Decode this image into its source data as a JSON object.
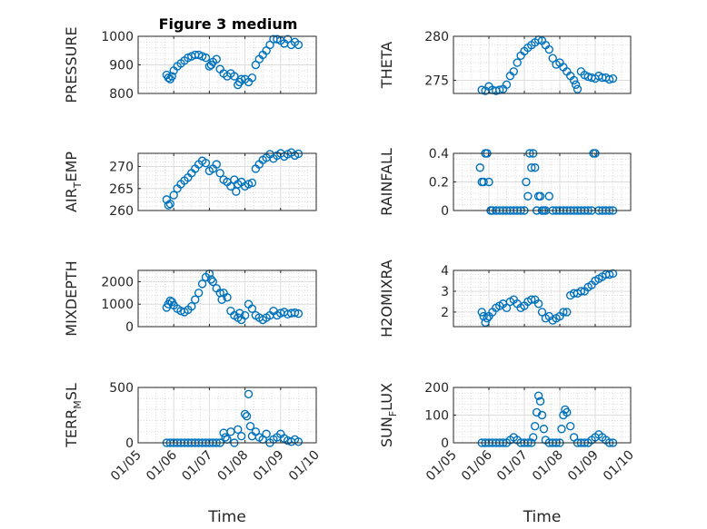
{
  "figure": {
    "title": "Figure 3 medium",
    "xlabel": "Time",
    "x_ticks": [
      "01/05",
      "01/06",
      "01/07",
      "01/08",
      "01/09",
      "01/10"
    ],
    "marker_color": "#0072bd"
  },
  "chart_data": [
    {
      "type": "scatter",
      "ylabel": "PRESSURE",
      "ylim": [
        800,
        1000
      ],
      "yticks": [
        "800",
        "900",
        "1000"
      ],
      "ytick_values": [
        800,
        900,
        1000
      ],
      "xlim": [
        5,
        10
      ],
      "grid": true,
      "x": [
        5.8,
        5.85,
        5.9,
        5.95,
        6.0,
        6.1,
        6.2,
        6.3,
        6.4,
        6.5,
        6.6,
        6.7,
        6.8,
        6.9,
        7.0,
        7.05,
        7.1,
        7.2,
        7.3,
        7.4,
        7.5,
        7.6,
        7.7,
        7.8,
        7.85,
        7.9,
        8.0,
        8.1,
        8.2,
        8.3,
        8.4,
        8.5,
        8.6,
        8.7,
        8.8,
        8.9,
        9.0,
        9.1,
        9.2,
        9.3,
        9.4,
        9.5
      ],
      "y": [
        865,
        855,
        850,
        860,
        880,
        895,
        905,
        915,
        925,
        930,
        935,
        935,
        930,
        925,
        895,
        900,
        910,
        920,
        885,
        870,
        860,
        870,
        860,
        830,
        840,
        850,
        850,
        840,
        855,
        900,
        920,
        935,
        950,
        970,
        990,
        990,
        985,
        975,
        990,
        970,
        980,
        970
      ]
    },
    {
      "type": "scatter",
      "ylabel": "THETA",
      "ylim": [
        273.5,
        280
      ],
      "yticks": [
        "275",
        "280"
      ],
      "ytick_values": [
        275,
        280
      ],
      "xlim": [
        5,
        10
      ],
      "grid": true,
      "x": [
        5.8,
        5.9,
        6.0,
        6.1,
        6.2,
        6.3,
        6.4,
        6.5,
        6.6,
        6.7,
        6.8,
        6.9,
        7.0,
        7.1,
        7.2,
        7.3,
        7.4,
        7.5,
        7.6,
        7.7,
        7.8,
        7.9,
        8.0,
        8.1,
        8.2,
        8.3,
        8.4,
        8.45,
        8.5,
        8.6,
        8.7,
        8.8,
        8.9,
        9.0,
        9.1,
        9.2,
        9.3,
        9.4,
        9.5
      ],
      "y": [
        273.9,
        273.8,
        274.3,
        273.9,
        273.8,
        273.9,
        274.0,
        274.5,
        275.5,
        276.0,
        277.0,
        277.8,
        278.3,
        278.7,
        279.0,
        279.3,
        279.6,
        279.5,
        279.0,
        278.5,
        277.5,
        276.8,
        277.0,
        276.5,
        276.0,
        275.5,
        275.0,
        274.5,
        274.0,
        276.0,
        275.6,
        275.4,
        275.3,
        275.2,
        275.5,
        275.3,
        275.3,
        275.1,
        275.2
      ]
    },
    {
      "type": "scatter",
      "ylabel": "AIR_T_EMP",
      "ylabel_parts": [
        "AIR",
        "T",
        "EMP"
      ],
      "ylim": [
        260,
        273
      ],
      "yticks": [
        "260",
        "265",
        "270"
      ],
      "ytick_values": [
        260,
        265,
        270
      ],
      "xlim": [
        5,
        10
      ],
      "grid": true,
      "x": [
        5.8,
        5.85,
        5.9,
        6.0,
        6.1,
        6.2,
        6.3,
        6.4,
        6.5,
        6.6,
        6.7,
        6.8,
        6.9,
        7.0,
        7.1,
        7.2,
        7.3,
        7.4,
        7.5,
        7.6,
        7.7,
        7.75,
        7.8,
        7.9,
        8.0,
        8.1,
        8.2,
        8.3,
        8.4,
        8.5,
        8.6,
        8.7,
        8.8,
        8.9,
        9.0,
        9.1,
        9.2,
        9.3,
        9.4,
        9.5
      ],
      "y": [
        262.5,
        261.2,
        261.5,
        263.5,
        265,
        266,
        266.8,
        267.5,
        268.5,
        269.5,
        270.5,
        271.3,
        270.8,
        269,
        269.5,
        270.5,
        268.5,
        267,
        266.5,
        265.5,
        267.0,
        264.3,
        266.0,
        266.5,
        265.5,
        266.0,
        266.3,
        269.5,
        270.5,
        271.5,
        272.0,
        272.8,
        271.8,
        272.5,
        273.0,
        272.3,
        272.8,
        273.2,
        272.5,
        272.9
      ]
    },
    {
      "type": "scatter",
      "ylabel": "RAINFALL",
      "ylim": [
        0,
        0.4
      ],
      "yticks": [
        "0",
        "0.2",
        "0.4"
      ],
      "ytick_values": [
        0,
        0.2,
        0.4
      ],
      "xlim": [
        5,
        10
      ],
      "grid": true,
      "x": [
        5.75,
        5.8,
        5.85,
        5.9,
        5.95,
        6.0,
        6.05,
        6.1,
        6.2,
        6.3,
        6.4,
        6.5,
        6.6,
        6.7,
        6.8,
        6.9,
        7.0,
        7.05,
        7.1,
        7.15,
        7.2,
        7.25,
        7.3,
        7.35,
        7.4,
        7.45,
        7.5,
        7.55,
        7.6,
        7.7,
        7.8,
        7.9,
        8.0,
        8.1,
        8.2,
        8.3,
        8.4,
        8.5,
        8.6,
        8.7,
        8.8,
        8.9,
        8.95,
        9.0,
        9.1,
        9.2,
        9.3,
        9.4,
        9.5
      ],
      "y": [
        0.3,
        0.2,
        0.2,
        0.4,
        0.4,
        0.2,
        0,
        0,
        0,
        0,
        0,
        0,
        0,
        0,
        0,
        0,
        0,
        0.2,
        0.1,
        0.4,
        0.3,
        0.4,
        0.3,
        0,
        0.1,
        0.1,
        0,
        0,
        0,
        0.1,
        0,
        0,
        0,
        0,
        0,
        0,
        0,
        0,
        0,
        0,
        0,
        0,
        0.4,
        0.4,
        0,
        0,
        0,
        0,
        0
      ]
    },
    {
      "type": "scatter",
      "ylabel": "MIXDEPTH",
      "ylim": [
        0,
        2500
      ],
      "yticks": [
        "0",
        "1000",
        "2000"
      ],
      "ytick_values": [
        0,
        1000,
        2000
      ],
      "xlim": [
        5,
        10
      ],
      "grid": true,
      "x": [
        5.8,
        5.85,
        5.9,
        5.95,
        6.0,
        6.1,
        6.2,
        6.3,
        6.4,
        6.5,
        6.6,
        6.7,
        6.8,
        6.9,
        7.0,
        7.05,
        7.1,
        7.2,
        7.3,
        7.35,
        7.4,
        7.5,
        7.6,
        7.7,
        7.8,
        7.85,
        7.9,
        8.0,
        8.1,
        8.2,
        8.3,
        8.4,
        8.5,
        8.6,
        8.7,
        8.8,
        8.9,
        9.0,
        9.1,
        9.2,
        9.3,
        9.4,
        9.5
      ],
      "y": [
        850,
        1000,
        1150,
        1100,
        950,
        800,
        700,
        650,
        750,
        900,
        1200,
        1500,
        1900,
        2200,
        2350,
        2100,
        2000,
        1700,
        1500,
        1200,
        1500,
        1300,
        700,
        500,
        400,
        600,
        300,
        500,
        1000,
        800,
        500,
        400,
        300,
        400,
        500,
        700,
        500,
        600,
        650,
        550,
        600,
        620,
        580
      ]
    },
    {
      "type": "scatter",
      "ylabel": "H2OMIXRA",
      "ylim": [
        1.3,
        4
      ],
      "yticks": [
        "2",
        "3",
        "4"
      ],
      "ytick_values": [
        2,
        3,
        4
      ],
      "xlim": [
        5,
        10
      ],
      "grid": true,
      "x": [
        5.8,
        5.85,
        5.9,
        5.95,
        6.0,
        6.1,
        6.2,
        6.3,
        6.4,
        6.5,
        6.6,
        6.7,
        6.8,
        6.9,
        7.0,
        7.1,
        7.2,
        7.3,
        7.4,
        7.5,
        7.6,
        7.7,
        7.8,
        7.9,
        8.0,
        8.1,
        8.2,
        8.3,
        8.4,
        8.5,
        8.6,
        8.7,
        8.8,
        8.9,
        9.0,
        9.1,
        9.2,
        9.3,
        9.4,
        9.5
      ],
      "y": [
        2.0,
        1.8,
        1.5,
        1.7,
        1.8,
        2.0,
        2.2,
        2.3,
        2.4,
        2.2,
        2.5,
        2.6,
        2.4,
        2.2,
        2.3,
        2.5,
        2.6,
        2.6,
        2.4,
        2.0,
        1.7,
        1.8,
        1.6,
        1.7,
        1.8,
        2.0,
        2.0,
        2.8,
        2.9,
        2.9,
        3.0,
        3.0,
        3.2,
        3.3,
        3.5,
        3.6,
        3.7,
        3.8,
        3.8,
        3.85
      ]
    },
    {
      "type": "scatter",
      "ylabel": "TERR_M_SL",
      "ylabel_parts": [
        "TERR",
        "M",
        "SL"
      ],
      "ylim": [
        0,
        500
      ],
      "yticks": [
        "0",
        "500"
      ],
      "ytick_values": [
        0,
        500
      ],
      "xlim": [
        5,
        10
      ],
      "grid": true,
      "x": [
        5.8,
        5.9,
        6.0,
        6.1,
        6.2,
        6.3,
        6.4,
        6.5,
        6.6,
        6.7,
        6.8,
        6.9,
        7.0,
        7.1,
        7.2,
        7.3,
        7.4,
        7.45,
        7.5,
        7.6,
        7.7,
        7.8,
        7.9,
        8.0,
        8.05,
        8.1,
        8.15,
        8.2,
        8.3,
        8.4,
        8.5,
        8.6,
        8.7,
        8.8,
        8.9,
        9.0,
        9.1,
        9.2,
        9.3,
        9.4,
        9.5
      ],
      "y": [
        0,
        0,
        0,
        0,
        0,
        0,
        0,
        0,
        0,
        0,
        0,
        0,
        0,
        0,
        0,
        0,
        90,
        50,
        30,
        100,
        0,
        120,
        60,
        260,
        240,
        440,
        150,
        60,
        100,
        50,
        30,
        80,
        0,
        30,
        50,
        80,
        40,
        20,
        10,
        30,
        10
      ]
    },
    {
      "type": "scatter",
      "ylabel": "SUN_F_LUX",
      "ylabel_parts": [
        "SUN",
        "F",
        "LUX"
      ],
      "ylim": [
        0,
        200
      ],
      "yticks": [
        "0",
        "100",
        "200"
      ],
      "ytick_values": [
        0,
        100,
        200
      ],
      "xlim": [
        5,
        10
      ],
      "grid": true,
      "x": [
        5.8,
        5.9,
        6.0,
        6.1,
        6.2,
        6.3,
        6.4,
        6.5,
        6.6,
        6.7,
        6.8,
        6.9,
        7.0,
        7.1,
        7.2,
        7.25,
        7.3,
        7.35,
        7.4,
        7.45,
        7.5,
        7.55,
        7.6,
        7.7,
        7.8,
        7.9,
        8.0,
        8.05,
        8.1,
        8.15,
        8.2,
        8.3,
        8.4,
        8.5,
        8.6,
        8.7,
        8.8,
        8.9,
        9.0,
        9.1,
        9.2,
        9.3,
        9.4,
        9.5
      ],
      "y": [
        0,
        0,
        0,
        0,
        0,
        0,
        0,
        0,
        10,
        20,
        10,
        0,
        0,
        0,
        0,
        20,
        60,
        110,
        170,
        150,
        100,
        50,
        10,
        0,
        0,
        0,
        0,
        50,
        100,
        120,
        110,
        60,
        20,
        0,
        0,
        0,
        0,
        10,
        20,
        30,
        20,
        10,
        0,
        0
      ]
    }
  ]
}
